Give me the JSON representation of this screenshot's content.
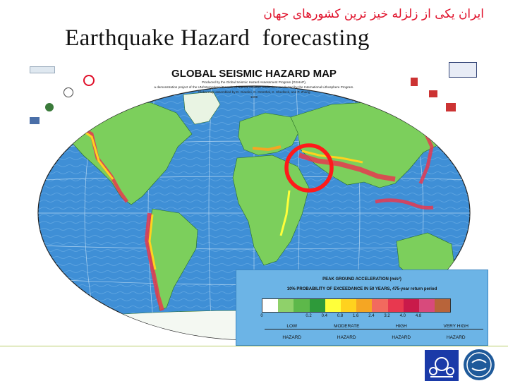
{
  "slide": {
    "persian_title": "ایران یکی از زلزله خیز ترین کشورهای جهان",
    "title": "Earthquake Hazard  forecasting"
  },
  "map": {
    "title": "GLOBAL SEISMIC HAZARD MAP",
    "credits": [
      "Produced by the Global Seismic Hazard Assessment Program (GSHAP),",
      "a demonstration project of the UN/International Decade of Natural Disaster Reduction, conducted by the International Lithosphere Program.",
      "Global map assembled by D. Giardini, G. Grünthal, K. Shedlock, and P. Zhang",
      "1999"
    ],
    "highlight_region": "Iran",
    "highlight_color": "#ff1a1a"
  },
  "legend": {
    "title": "PEAK GROUND ACCELERATION (m/s²)",
    "subtitle": "10% PROBABILITY OF EXCEEDANCE IN 50 YEARS, 475-year return period",
    "colors": [
      "#ffffff",
      "#8fd16a",
      "#5db84a",
      "#2e9a3a",
      "#ffff3a",
      "#ffd21e",
      "#f5a623",
      "#f26a5e",
      "#e8384f",
      "#c91a4a",
      "#d84a7c",
      "#b8643a"
    ],
    "ticks": [
      "0",
      "0.2",
      "0.4",
      "0.8",
      "1.6",
      "2.4",
      "3.2",
      "4.0",
      "4.8"
    ],
    "categories": [
      "LOW",
      "MODERATE",
      "HIGH",
      "VERY  HIGH"
    ],
    "categories_sub": [
      "HAZARD",
      "HAZARD",
      "HAZARD",
      "HAZARD"
    ]
  },
  "colors": {
    "ocean": "#3f8fd6",
    "land": "#7ccf5c",
    "accent_red": "#e0102a"
  }
}
